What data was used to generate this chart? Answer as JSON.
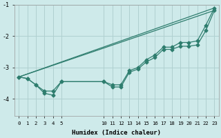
{
  "xlabel": "Humidex (Indice chaleur)",
  "bg_color": "#ceeaea",
  "grid_color": "#b0d0d0",
  "line_color": "#2e7d6e",
  "xlim": [
    -0.5,
    23.5
  ],
  "ylim": [
    -4.55,
    -1.15
  ],
  "xticks": [
    0,
    1,
    2,
    3,
    4,
    5,
    10,
    11,
    12,
    13,
    14,
    15,
    16,
    17,
    18,
    19,
    20,
    21,
    22,
    23
  ],
  "yticks": [
    -4,
    -3,
    -2,
    -1
  ],
  "line1_x": [
    0,
    1,
    2,
    3,
    4,
    5,
    10,
    11,
    12,
    13,
    14,
    15,
    16,
    17,
    18,
    19,
    20,
    21,
    22,
    23
  ],
  "line1_y": [
    -3.3,
    -3.35,
    -3.55,
    -3.75,
    -3.75,
    -3.45,
    -3.45,
    -3.55,
    -3.55,
    -3.1,
    -3.0,
    -2.75,
    -2.6,
    -2.35,
    -2.35,
    -2.2,
    -2.2,
    -2.15,
    -1.65,
    -1.1
  ],
  "line2_x": [
    0,
    1,
    2,
    3,
    4,
    5,
    10,
    11,
    12,
    13,
    14,
    15,
    16,
    17,
    18,
    19,
    20,
    21,
    22,
    23
  ],
  "line2_y": [
    -3.3,
    -3.35,
    -3.55,
    -3.82,
    -3.88,
    -3.45,
    -3.45,
    -3.62,
    -3.62,
    -3.15,
    -3.05,
    -2.82,
    -2.68,
    -2.42,
    -2.42,
    -2.32,
    -2.32,
    -2.28,
    -1.82,
    -1.18
  ],
  "line3_x": [
    0,
    23
  ],
  "line3_y": [
    -3.3,
    -1.1
  ],
  "line4_x": [
    0,
    23
  ],
  "line4_y": [
    -3.3,
    -1.18
  ]
}
